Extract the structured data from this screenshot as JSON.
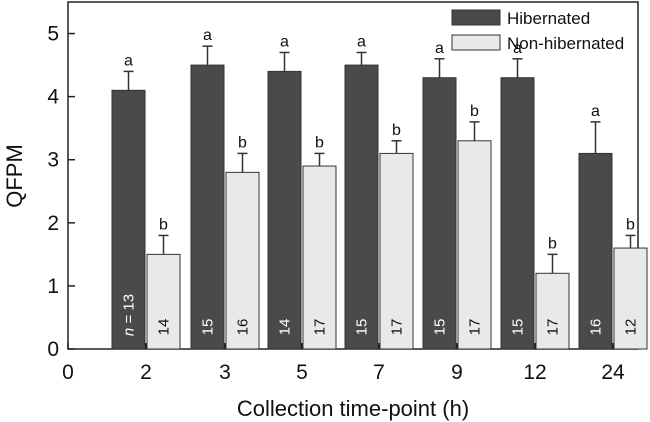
{
  "chart_data": {
    "type": "bar",
    "xlabel": "Collection time-point (h)",
    "ylabel": "QFPM",
    "ylim": [
      0,
      5.5
    ],
    "yticks": [
      0,
      1,
      2,
      3,
      4,
      5
    ],
    "x_zero_label": "0",
    "categories": [
      "2",
      "3",
      "5",
      "7",
      "9",
      "12",
      "24"
    ],
    "legend_position": "top-right",
    "series": [
      {
        "name": "Hibernated",
        "color": "#4a4a4a",
        "values": [
          4.1,
          4.5,
          4.4,
          4.5,
          4.3,
          4.3,
          3.1
        ],
        "errors": [
          0.3,
          0.3,
          0.3,
          0.2,
          0.3,
          0.3,
          0.5
        ],
        "letters": [
          "a",
          "a",
          "a",
          "a",
          "a",
          "a",
          "a"
        ],
        "n": [
          "13",
          "15",
          "14",
          "15",
          "15",
          "15",
          "16"
        ]
      },
      {
        "name": "Non-hibernated",
        "color": "#e9e9e9",
        "values": [
          1.5,
          2.8,
          2.9,
          3.1,
          3.3,
          1.2,
          1.6
        ],
        "errors": [
          0.3,
          0.3,
          0.2,
          0.2,
          0.3,
          0.3,
          0.2
        ],
        "letters": [
          "b",
          "b",
          "b",
          "b",
          "b",
          "b",
          "b"
        ],
        "n": [
          "14",
          "16",
          "17",
          "17",
          "17",
          "17",
          "12"
        ]
      }
    ],
    "n_prefix": "n",
    "n_equals": " = "
  }
}
